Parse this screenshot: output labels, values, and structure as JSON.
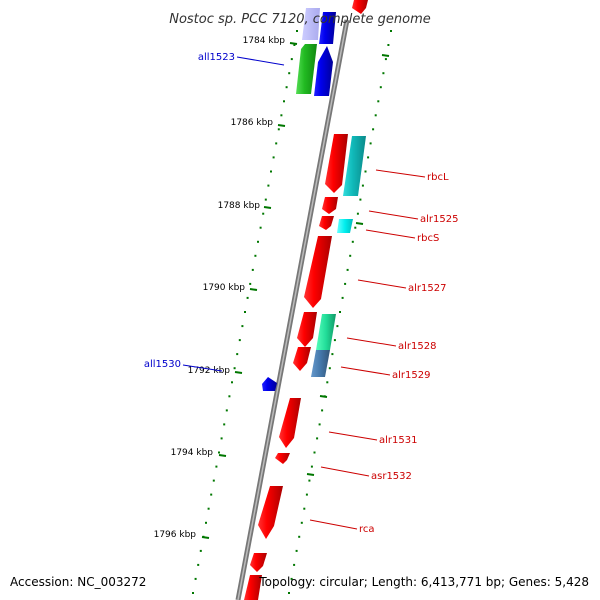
{
  "title": "Nostoc sp. PCC 7120, complete genome",
  "footer": {
    "accession": "Accession: NC_003272",
    "topology": "Topology: circular; Length: 6,413,771 bp; Genes: 5,428"
  },
  "scale_labels": [
    "1784 kbp",
    "1786 kbp",
    "1788 kbp",
    "1790 kbp",
    "1792 kbp",
    "1794 kbp",
    "1796 kbp"
  ],
  "gene_labels": [
    {
      "name": "all1523",
      "strand": "reverse"
    },
    {
      "name": "rbcL",
      "strand": "forward"
    },
    {
      "name": "alr1525",
      "strand": "forward"
    },
    {
      "name": "rbcS",
      "strand": "forward"
    },
    {
      "name": "alr1527",
      "strand": "forward"
    },
    {
      "name": "alr1528",
      "strand": "forward"
    },
    {
      "name": "alr1529",
      "strand": "forward"
    },
    {
      "name": "all1530",
      "strand": "reverse"
    },
    {
      "name": "alr1531",
      "strand": "forward"
    },
    {
      "name": "asr1532",
      "strand": "forward"
    },
    {
      "name": "rca",
      "strand": "forward"
    }
  ],
  "colors": {
    "forward_gene": "#ff0000",
    "reverse_gene": "#0000ee",
    "backbone": "#888888",
    "tick": "#007700",
    "label_forward": "#cc0000",
    "label_reverse": "#0000cc"
  }
}
